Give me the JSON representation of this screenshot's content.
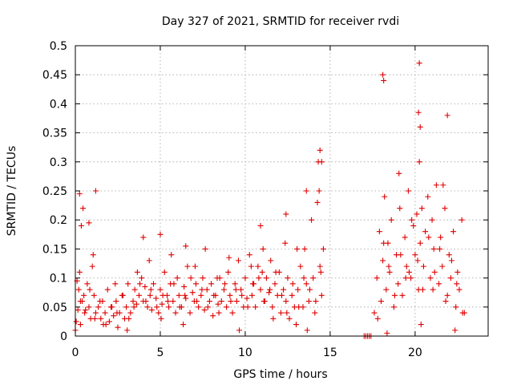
{
  "chart_data": {
    "type": "scatter",
    "title": "Day 327 of 2021, SRMTID for receiver rvdi",
    "xlabel": "GPS time / hours",
    "ylabel": "SRMTID / TECUs",
    "xlim": [
      0,
      24.3
    ],
    "ylim": [
      0,
      0.5
    ],
    "x_ticks": [
      0,
      5,
      10,
      15,
      20
    ],
    "y_ticks": [
      0,
      0.05,
      0.1,
      0.15,
      0.2,
      0.25,
      0.3,
      0.35,
      0.4,
      0.45,
      0.5
    ],
    "grid": true,
    "marker": "+",
    "color": "#e00000",
    "series": [
      {
        "name": "SRMTID",
        "x": [
          0.0,
          0.1,
          0.15,
          0.2,
          0.25,
          0.3,
          0.4,
          0.5,
          0.6,
          0.7,
          0.8,
          0.9,
          1.0,
          1.1,
          1.2,
          1.35,
          1.5,
          1.6,
          1.75,
          1.9,
          2.0,
          2.1,
          2.25,
          2.4,
          2.5,
          2.6,
          2.75,
          2.9,
          3.0,
          3.1,
          3.25,
          3.4,
          3.5,
          3.6,
          3.75,
          3.9,
          4.0,
          4.1,
          4.25,
          4.4,
          4.5,
          4.6,
          4.75,
          4.9,
          5.0,
          5.1,
          5.25,
          5.4,
          5.5,
          5.6,
          5.75,
          5.9,
          6.0,
          6.1,
          6.25,
          6.4,
          6.5,
          6.6,
          6.75,
          6.9,
          7.0,
          7.1,
          7.25,
          7.4,
          7.5,
          7.6,
          7.75,
          7.9,
          8.0,
          8.1,
          8.25,
          8.4,
          8.5,
          8.6,
          8.75,
          8.9,
          9.0,
          9.1,
          9.25,
          9.4,
          9.5,
          9.6,
          9.75,
          9.9,
          10.0,
          10.1,
          10.25,
          10.4,
          10.5,
          10.6,
          10.75,
          10.9,
          11.0,
          11.1,
          11.25,
          11.4,
          11.5,
          11.6,
          11.75,
          11.9,
          12.0,
          12.1,
          12.25,
          12.4,
          12.5,
          12.6,
          12.75,
          12.9,
          13.0,
          13.1,
          13.25,
          13.4,
          13.5,
          13.6,
          13.75,
          13.9,
          14.0,
          14.1,
          14.25,
          14.4,
          14.5,
          14.6,
          17.0,
          17.1,
          17.2,
          17.3,
          17.4,
          17.6,
          17.75,
          17.9,
          18.0,
          18.1,
          18.2,
          18.3,
          18.4,
          18.5,
          18.6,
          18.75,
          18.9,
          19.0,
          19.1,
          19.25,
          19.4,
          19.5,
          19.6,
          19.75,
          19.9,
          20.0,
          20.1,
          20.2,
          20.25,
          20.3,
          20.4,
          20.5,
          20.6,
          20.75,
          20.9,
          21.0,
          21.1,
          21.25,
          21.4,
          21.5,
          21.6,
          21.75,
          21.9,
          22.0,
          22.1,
          22.25,
          22.4,
          22.5,
          22.6,
          22.75,
          22.9,
          0.05,
          0.3,
          0.55,
          0.85,
          1.15,
          1.45,
          1.8,
          2.15,
          2.45,
          2.8,
          3.15,
          3.45,
          3.8,
          4.15,
          4.45,
          4.8,
          5.15,
          5.45,
          5.8,
          6.15,
          6.45,
          6.8,
          7.15,
          7.45,
          7.8,
          8.15,
          8.45,
          8.8,
          9.15,
          9.45,
          9.8,
          10.15,
          10.45,
          10.8,
          11.15,
          11.45,
          11.8,
          12.15,
          12.45,
          12.8,
          13.15,
          13.45,
          13.8,
          14.15,
          14.45,
          17.8,
          18.15,
          18.45,
          18.8,
          19.15,
          19.45,
          19.8,
          20.15,
          20.45,
          20.8,
          21.15,
          21.45,
          21.8,
          22.15,
          22.45,
          22.8,
          0.35,
          1.05,
          1.65,
          2.35,
          3.05,
          3.65,
          4.35,
          5.05,
          5.65,
          6.35,
          7.05,
          7.65,
          8.35,
          9.05,
          9.65,
          10.35,
          11.05,
          11.65,
          12.35,
          13.05,
          13.65,
          14.35,
          18.35,
          19.05,
          19.65,
          20.35,
          21.05,
          21.65,
          22.35,
          0.25,
          0.45,
          14.3,
          14.4,
          14.5,
          18.1,
          18.15,
          20.2,
          20.25,
          20.3,
          21.9,
          13.6,
          12.4,
          10.9,
          6.5,
          5.0,
          4.0,
          1.2,
          0.8
        ],
        "y": [
          0.01,
          0.095,
          0.045,
          0.08,
          0.11,
          0.02,
          0.06,
          0.07,
          0.045,
          0.09,
          0.05,
          0.03,
          0.12,
          0.07,
          0.04,
          0.05,
          0.03,
          0.06,
          0.04,
          0.08,
          0.025,
          0.05,
          0.035,
          0.06,
          0.015,
          0.04,
          0.07,
          0.03,
          0.05,
          0.09,
          0.04,
          0.06,
          0.08,
          0.055,
          0.07,
          0.1,
          0.06,
          0.085,
          0.05,
          0.07,
          0.045,
          0.09,
          0.065,
          0.04,
          0.08,
          0.055,
          0.11,
          0.07,
          0.05,
          0.09,
          0.06,
          0.04,
          0.1,
          0.07,
          0.05,
          0.085,
          0.065,
          0.12,
          0.04,
          0.075,
          0.06,
          0.09,
          0.05,
          0.07,
          0.1,
          0.045,
          0.08,
          0.06,
          0.09,
          0.035,
          0.07,
          0.055,
          0.1,
          0.06,
          0.08,
          0.05,
          0.11,
          0.07,
          0.04,
          0.09,
          0.06,
          0.13,
          0.08,
          0.05,
          0.1,
          0.065,
          0.14,
          0.07,
          0.09,
          0.05,
          0.12,
          0.08,
          0.11,
          0.06,
          0.1,
          0.075,
          0.13,
          0.05,
          0.09,
          0.07,
          0.11,
          0.04,
          0.08,
          0.06,
          0.1,
          0.03,
          0.07,
          0.05,
          0.02,
          0.08,
          0.12,
          0.05,
          0.15,
          0.09,
          0.06,
          0.2,
          0.1,
          0.04,
          0.23,
          0.12,
          0.07,
          0.15,
          0.0,
          0.0,
          0.0,
          0.0,
          0.0,
          0.04,
          0.1,
          0.18,
          0.06,
          0.13,
          0.24,
          0.08,
          0.16,
          0.11,
          0.2,
          0.05,
          0.14,
          0.09,
          0.22,
          0.07,
          0.17,
          0.12,
          0.25,
          0.1,
          0.19,
          0.14,
          0.21,
          0.08,
          0.3,
          0.16,
          0.22,
          0.12,
          0.18,
          0.24,
          0.1,
          0.2,
          0.15,
          0.26,
          0.09,
          0.17,
          0.12,
          0.22,
          0.07,
          0.14,
          0.1,
          0.18,
          0.05,
          0.11,
          0.08,
          0.2,
          0.04,
          0.025,
          0.06,
          0.04,
          0.08,
          0.03,
          0.06,
          0.02,
          0.05,
          0.04,
          0.07,
          0.03,
          0.05,
          0.09,
          0.06,
          0.08,
          0.05,
          0.07,
          0.06,
          0.09,
          0.05,
          0.07,
          0.1,
          0.06,
          0.08,
          0.05,
          0.07,
          0.04,
          0.09,
          0.06,
          0.08,
          0.07,
          0.05,
          0.09,
          0.1,
          0.06,
          0.08,
          0.11,
          0.07,
          0.04,
          0.09,
          0.05,
          0.1,
          0.08,
          0.06,
          0.11,
          0.03,
          0.16,
          0.12,
          0.07,
          0.14,
          0.1,
          0.2,
          0.13,
          0.08,
          0.17,
          0.11,
          0.15,
          0.06,
          0.13,
          0.09,
          0.04,
          0.19,
          0.14,
          0.02,
          0.09,
          0.01,
          0.11,
          0.13,
          0.03,
          0.14,
          0.02,
          0.12,
          0.15,
          0.1,
          0.135,
          0.01,
          0.12,
          0.15,
          0.03,
          0.16,
          0.15,
          0.01,
          0.25,
          0.005,
          0.28,
          0.11,
          0.02,
          0.08,
          0.26,
          0.01,
          0.245,
          0.22,
          0.3,
          0.32,
          0.3,
          0.45,
          0.44,
          0.385,
          0.47,
          0.36,
          0.38,
          0.25,
          0.21,
          0.19,
          0.155,
          0.175,
          0.17,
          0.25,
          0.195
        ]
      }
    ]
  }
}
